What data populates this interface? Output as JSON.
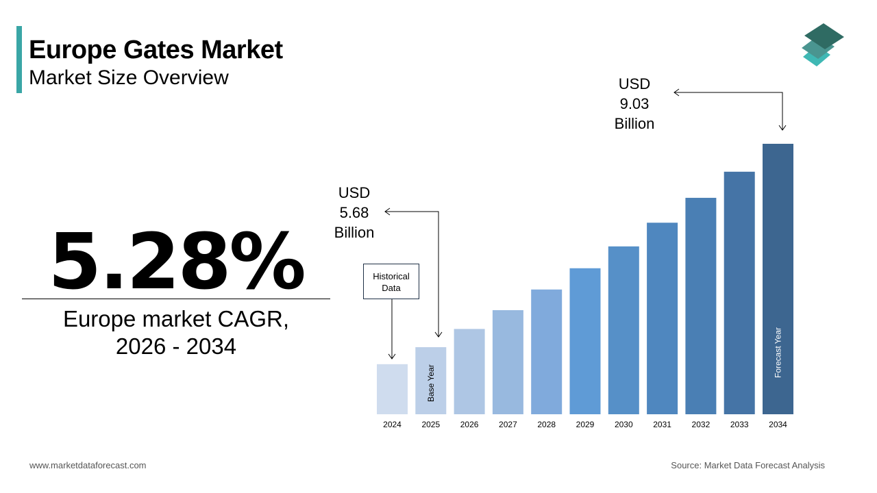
{
  "header": {
    "title": "Europe Gates Market",
    "subtitle": "Market Size Overview"
  },
  "highlight": {
    "cagr": "5.28%",
    "label_line1": "Europe market CAGR,",
    "label_line2": "2026 - 2034"
  },
  "footer": {
    "website": "www.marketdataforecast.com",
    "source": "Source: Market Data Forecast Analysis"
  },
  "logo": {
    "icon": "stacked-layers-icon",
    "colors": [
      "#2f6b63",
      "#4a9590",
      "#3fb8b4"
    ]
  },
  "chart_data": {
    "type": "bar",
    "categories": [
      "2024",
      "2025",
      "2026",
      "2027",
      "2028",
      "2029",
      "2030",
      "2031",
      "2032",
      "2033",
      "2034"
    ],
    "values": [
      5.4,
      5.68,
      5.98,
      6.29,
      6.63,
      6.98,
      7.34,
      7.73,
      8.14,
      8.57,
      9.03
    ],
    "colors": [
      "#cfdcee",
      "#bccfe8",
      "#aec6e4",
      "#98b9df",
      "#80aadc",
      "#5f9bd6",
      "#5690c8",
      "#4f87bf",
      "#4a7fb4",
      "#4574a6",
      "#3d6690"
    ],
    "ylim": [
      4.575,
      9.03
    ],
    "grid": false,
    "bar_labels": {
      "2025": "Base Year",
      "2034": "Forecast Year"
    },
    "annotations": {
      "start": {
        "line1": "USD",
        "line2": "5.68",
        "line3": "Billion"
      },
      "end": {
        "line1": "USD",
        "line2": "9.03",
        "line3": "Billion"
      },
      "historical": {
        "line1": "Historical",
        "line2": "Data"
      }
    }
  }
}
